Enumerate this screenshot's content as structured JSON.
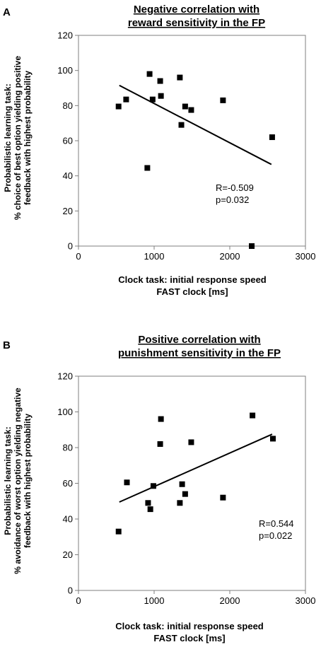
{
  "chart_data": [
    {
      "type": "scatter",
      "panel_label": "A",
      "title_lines": [
        "Negative correlation with",
        "reward sensitivity in the FP"
      ],
      "xlabel_lines": [
        "Clock task: initial response speed",
        "FAST clock [ms]"
      ],
      "ylabel_lines": [
        "Probabilistic learning task:",
        "% choice of best option yielding positive",
        "feedback with highest probability"
      ],
      "xlim": [
        0,
        3000
      ],
      "ylim": [
        0,
        120
      ],
      "xticks": [
        "0",
        "1000",
        "2000",
        "3000"
      ],
      "yticks": [
        "0",
        "20",
        "40",
        "60",
        "80",
        "100",
        "120"
      ],
      "points": [
        {
          "x": 530,
          "y": 79.5
        },
        {
          "x": 630,
          "y": 83.5
        },
        {
          "x": 910,
          "y": 44.5
        },
        {
          "x": 940,
          "y": 98
        },
        {
          "x": 980,
          "y": 83.5
        },
        {
          "x": 1080,
          "y": 94
        },
        {
          "x": 1090,
          "y": 85.5
        },
        {
          "x": 1340,
          "y": 96
        },
        {
          "x": 1360,
          "y": 69
        },
        {
          "x": 1410,
          "y": 79.5
        },
        {
          "x": 1490,
          "y": 77.5
        },
        {
          "x": 1910,
          "y": 83
        },
        {
          "x": 2290,
          "y": 0
        },
        {
          "x": 2560,
          "y": 62
        }
      ],
      "trendline": {
        "x": [
          540,
          2550
        ],
        "y": [
          91.5,
          46.5
        ]
      },
      "annotation_lines": [
        "R=-0.509",
        "p=0.032"
      ],
      "grid": false,
      "legend": "none"
    },
    {
      "type": "scatter",
      "panel_label": "B",
      "title_lines": [
        "Positive correlation with",
        "punishment sensitivity in the FP"
      ],
      "xlabel_lines": [
        "Clock task: initial response speed",
        "FAST clock [ms]"
      ],
      "ylabel_lines": [
        "Probabilistic learning task:",
        "% avoidance of worst option yielding negative",
        "feedback with highest probability"
      ],
      "xlim": [
        0,
        3000
      ],
      "ylim": [
        0,
        120
      ],
      "xticks": [
        "0",
        "1000",
        "2000",
        "3000"
      ],
      "yticks": [
        "0",
        "20",
        "40",
        "60",
        "80",
        "100",
        "120"
      ],
      "points": [
        {
          "x": 530,
          "y": 33
        },
        {
          "x": 640,
          "y": 60.5
        },
        {
          "x": 920,
          "y": 49
        },
        {
          "x": 950,
          "y": 45.5
        },
        {
          "x": 990,
          "y": 58.5
        },
        {
          "x": 1080,
          "y": 82
        },
        {
          "x": 1090,
          "y": 96
        },
        {
          "x": 1340,
          "y": 49
        },
        {
          "x": 1370,
          "y": 59.5
        },
        {
          "x": 1410,
          "y": 54
        },
        {
          "x": 1490,
          "y": 83
        },
        {
          "x": 1910,
          "y": 52
        },
        {
          "x": 2300,
          "y": 98
        },
        {
          "x": 2570,
          "y": 85
        }
      ],
      "trendline": {
        "x": [
          540,
          2560
        ],
        "y": [
          49.5,
          87.5
        ]
      },
      "annotation_lines": [
        "R=0.544",
        "p=0.022"
      ],
      "grid": false,
      "legend": "none"
    }
  ]
}
